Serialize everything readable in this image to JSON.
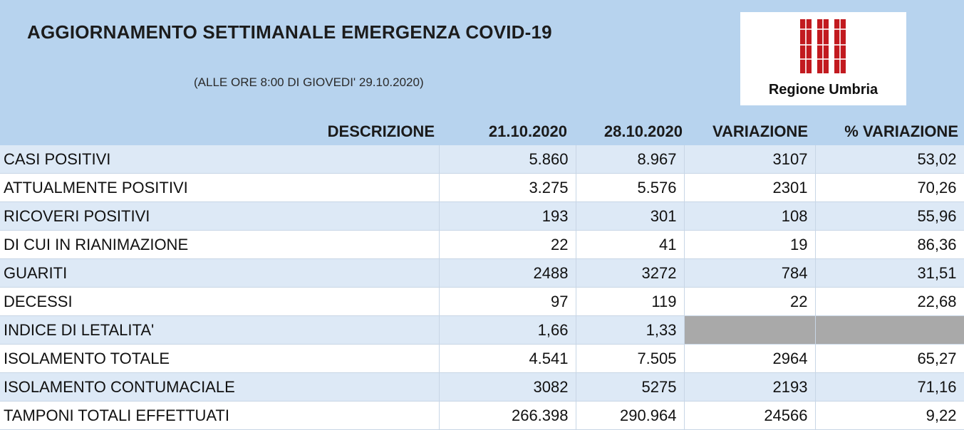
{
  "header": {
    "title": "AGGIORNAMENTO SETTIMANALE EMERGENZA COVID-19",
    "subtitle": "(ALLE ORE 8:00 DI GIOVEDI' 29.10.2020)"
  },
  "logo": {
    "text": "Regione Umbria",
    "colors": {
      "primary": "#c21a1f",
      "background": "#ffffff"
    }
  },
  "colors": {
    "header_band": "#b7d3ee",
    "row_alt": "#dde9f6",
    "row_plain": "#ffffff",
    "empty_cell": "#a9a9a9"
  },
  "table": {
    "columns": [
      "DESCRIZIONE",
      "21.10.2020",
      "28.10.2020",
      "VARIAZIONE",
      "% VARIAZIONE"
    ],
    "rows": [
      {
        "label": "CASI POSITIVI",
        "v1": "5.860",
        "v2": "8.967",
        "var": "3107",
        "pct": "53,02"
      },
      {
        "label": "ATTUALMENTE POSITIVI",
        "v1": "3.275",
        "v2": "5.576",
        "var": "2301",
        "pct": "70,26"
      },
      {
        "label": "RICOVERI POSITIVI",
        "v1": "193",
        "v2": "301",
        "var": "108",
        "pct": "55,96"
      },
      {
        "label": "DI CUI IN RIANIMAZIONE",
        "v1": "22",
        "v2": "41",
        "var": "19",
        "pct": "86,36"
      },
      {
        "label": "GUARITI",
        "v1": "2488",
        "v2": "3272",
        "var": "784",
        "pct": "31,51"
      },
      {
        "label": "DECESSI",
        "v1": "97",
        "v2": "119",
        "var": "22",
        "pct": "22,68"
      },
      {
        "label": "INDICE DI LETALITA'",
        "v1": "1,66",
        "v2": "1,33",
        "var": "",
        "pct": ""
      },
      {
        "label": "ISOLAMENTO TOTALE",
        "v1": "4.541",
        "v2": "7.505",
        "var": "2964",
        "pct": "65,27"
      },
      {
        "label": "ISOLAMENTO CONTUMACIALE",
        "v1": "3082",
        "v2": "5275",
        "var": "2193",
        "pct": "71,16"
      },
      {
        "label": "TAMPONI TOTALI EFFETTUATI",
        "v1": "266.398",
        "v2": "290.964",
        "var": "24566",
        "pct": "9,22"
      }
    ]
  }
}
